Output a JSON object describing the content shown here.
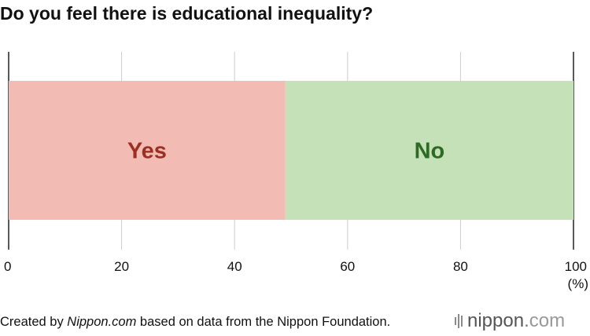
{
  "title": "Do you feel there is educational inequality?",
  "footer": {
    "prefix": "Created by ",
    "source_name": "Nippon.com",
    "suffix": " based on data from the Nippon Foundation."
  },
  "logo": {
    "name": "nippon",
    "dot": ".",
    "tld": "com"
  },
  "chart_data": {
    "type": "bar",
    "orientation": "horizontal-stacked",
    "title": "Do you feel there is educational inequality?",
    "xlim": [
      0,
      100
    ],
    "x_ticks": [
      "0",
      "20",
      "40",
      "60",
      "80",
      "100"
    ],
    "x_tick_values": [
      0,
      20,
      40,
      60,
      80,
      100
    ],
    "x_unit": "(%)",
    "grid": true,
    "segments": [
      {
        "label": "Yes",
        "value": 49,
        "fill": "#f2bcb4",
        "label_color": "#9b2f22"
      },
      {
        "label": "No",
        "value": 51,
        "fill": "#c5e1b7",
        "label_color": "#2f6a25"
      }
    ]
  }
}
